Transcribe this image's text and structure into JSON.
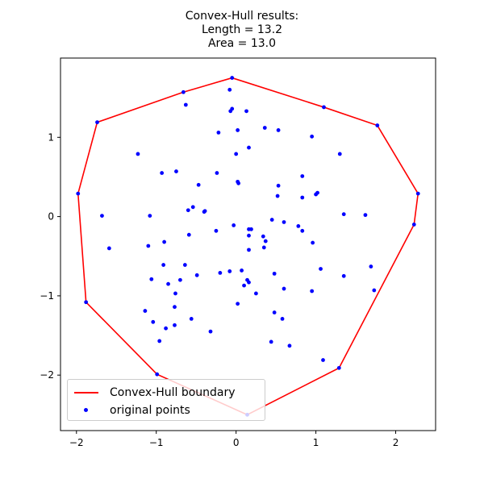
{
  "chart_data": {
    "type": "scatter",
    "title": "Convex-Hull results:",
    "subtitle_lines": [
      "Length = 13.2",
      "Area = 13.0"
    ],
    "xlabel": "",
    "ylabel": "",
    "xlim": [
      -2.2,
      2.5
    ],
    "ylim": [
      -2.7,
      2.0
    ],
    "xticks": [
      -2,
      -1,
      0,
      1,
      2
    ],
    "yticks": [
      -2,
      -1,
      0,
      1
    ],
    "legend_position": "lower-left",
    "colors": {
      "hull": "#ff0000",
      "points": "#0000ff",
      "axes": "#000000"
    },
    "series": [
      {
        "name": "Convex-Hull boundary",
        "kind": "line",
        "x": [
          -0.05,
          1.1,
          1.77,
          2.28,
          2.23,
          1.29,
          0.14,
          -0.99,
          -1.88,
          -1.98,
          -1.74,
          -0.66,
          -0.05
        ],
        "y": [
          1.75,
          1.38,
          1.15,
          0.29,
          -0.1,
          -1.91,
          -2.5,
          -1.99,
          -1.08,
          0.29,
          1.19,
          1.57,
          1.75
        ]
      },
      {
        "name": "original points",
        "kind": "scatter",
        "points": [
          [
            -0.05,
            1.75
          ],
          [
            1.1,
            1.38
          ],
          [
            1.77,
            1.15
          ],
          [
            2.28,
            0.29
          ],
          [
            2.23,
            -0.1
          ],
          [
            1.29,
            -1.91
          ],
          [
            0.14,
            -2.5
          ],
          [
            -0.99,
            -1.99
          ],
          [
            -1.88,
            -1.08
          ],
          [
            -1.98,
            0.29
          ],
          [
            -1.74,
            1.19
          ],
          [
            -0.66,
            1.57
          ],
          [
            -0.63,
            1.41
          ],
          [
            -0.08,
            1.6
          ],
          [
            -0.07,
            1.33
          ],
          [
            -0.05,
            1.36
          ],
          [
            0.13,
            1.33
          ],
          [
            0.36,
            1.12
          ],
          [
            0.53,
            1.09
          ],
          [
            0.95,
            1.01
          ],
          [
            1.3,
            0.79
          ],
          [
            -0.22,
            1.06
          ],
          [
            0.02,
            1.09
          ],
          [
            0.16,
            0.87
          ],
          [
            -1.23,
            0.79
          ],
          [
            0.0,
            0.79
          ],
          [
            -0.93,
            0.55
          ],
          [
            -0.75,
            0.57
          ],
          [
            -0.24,
            0.55
          ],
          [
            0.83,
            0.51
          ],
          [
            -0.47,
            0.4
          ],
          [
            0.03,
            0.42
          ],
          [
            0.02,
            0.44
          ],
          [
            0.53,
            0.39
          ],
          [
            0.52,
            0.26
          ],
          [
            0.83,
            0.24
          ],
          [
            1.0,
            0.28
          ],
          [
            1.02,
            0.3
          ],
          [
            -0.54,
            0.12
          ],
          [
            -0.6,
            0.08
          ],
          [
            -0.39,
            0.07
          ],
          [
            -0.4,
            0.06
          ],
          [
            1.35,
            0.03
          ],
          [
            1.62,
            0.02
          ],
          [
            -1.68,
            0.01
          ],
          [
            -1.08,
            0.01
          ],
          [
            0.45,
            -0.04
          ],
          [
            0.6,
            -0.07
          ],
          [
            0.78,
            -0.12
          ],
          [
            -0.03,
            -0.11
          ],
          [
            0.16,
            -0.16
          ],
          [
            0.19,
            -0.16
          ],
          [
            -0.25,
            -0.18
          ],
          [
            0.16,
            -0.24
          ],
          [
            0.34,
            -0.25
          ],
          [
            0.83,
            -0.18
          ],
          [
            -1.59,
            -0.4
          ],
          [
            -0.59,
            -0.23
          ],
          [
            -0.9,
            -0.32
          ],
          [
            -1.1,
            -0.37
          ],
          [
            0.37,
            -0.31
          ],
          [
            0.35,
            -0.39
          ],
          [
            0.96,
            -0.33
          ],
          [
            0.16,
            -0.42
          ],
          [
            -0.91,
            -0.61
          ],
          [
            -0.64,
            -0.61
          ],
          [
            -0.49,
            -0.74
          ],
          [
            -0.2,
            -0.71
          ],
          [
            -0.08,
            -0.69
          ],
          [
            0.07,
            -0.68
          ],
          [
            0.48,
            -0.72
          ],
          [
            1.06,
            -0.66
          ],
          [
            1.69,
            -0.63
          ],
          [
            1.35,
            -0.75
          ],
          [
            -1.06,
            -0.79
          ],
          [
            -0.7,
            -0.8
          ],
          [
            -0.85,
            -0.85
          ],
          [
            0.14,
            -0.8
          ],
          [
            0.16,
            -0.83
          ],
          [
            0.1,
            -0.87
          ],
          [
            0.25,
            -0.97
          ],
          [
            0.6,
            -0.91
          ],
          [
            0.95,
            -0.94
          ],
          [
            1.73,
            -0.93
          ],
          [
            -0.76,
            -0.97
          ],
          [
            -1.14,
            -1.19
          ],
          [
            -0.77,
            -1.14
          ],
          [
            0.02,
            -1.1
          ],
          [
            -1.04,
            -1.33
          ],
          [
            -0.56,
            -1.29
          ],
          [
            0.48,
            -1.21
          ],
          [
            0.58,
            -1.29
          ],
          [
            -0.88,
            -1.41
          ],
          [
            -0.77,
            -1.37
          ],
          [
            -0.32,
            -1.45
          ],
          [
            -0.96,
            -1.57
          ],
          [
            0.44,
            -1.58
          ],
          [
            0.67,
            -1.63
          ],
          [
            1.09,
            -1.81
          ]
        ]
      }
    ]
  },
  "legend": {
    "hull_label": "Convex-Hull boundary",
    "points_label": "original points"
  }
}
